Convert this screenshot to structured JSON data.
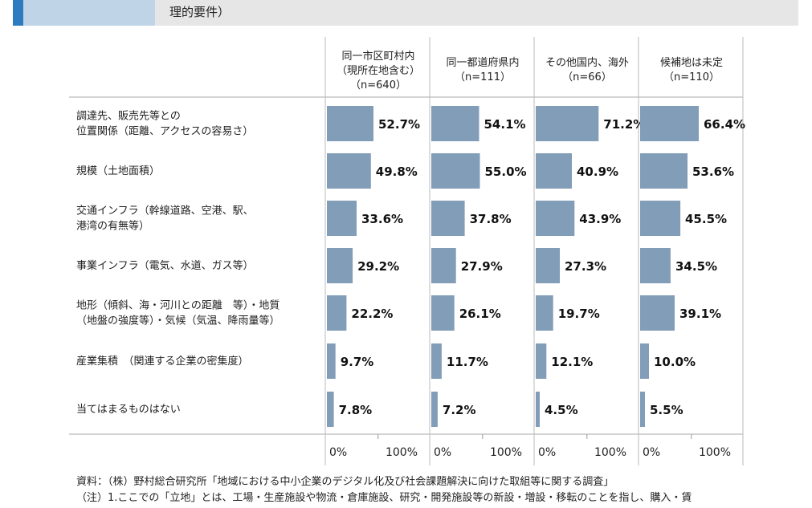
{
  "header": {
    "title": "理的要件）"
  },
  "chart_data": {
    "type": "bar",
    "orientation": "horizontal",
    "categories": [
      [
        "調達先、販売先等との",
        "位置関係（距離、アクセスの容易さ）"
      ],
      [
        "規模（土地面積）"
      ],
      [
        "交通インフラ（幹線道路、空港、駅、",
        "港湾の有無等）"
      ],
      [
        "事業インフラ（電気、水道、ガス等）"
      ],
      [
        "地形（傾斜、海・河川との距離　等）・地質",
        "（地盤の強度等）・気候（気温、降雨量等）"
      ],
      [
        "産業集積　（関連する企業の密集度）"
      ],
      [
        "当てはまるものはない"
      ]
    ],
    "series": [
      {
        "name": "同一市区町村内",
        "header": [
          "同一市区町村内",
          "（現所在地含む）",
          "（n=640）"
        ],
        "values": [
          52.7,
          49.8,
          33.6,
          29.2,
          22.2,
          9.7,
          7.8
        ],
        "labels": [
          "52.7%",
          "49.8%",
          "33.6%",
          "29.2%",
          "22.2%",
          "9.7%",
          "7.8%"
        ]
      },
      {
        "name": "同一都道府県内",
        "header": [
          "同一都道府県内",
          "（n=111）"
        ],
        "values": [
          54.1,
          55.0,
          37.8,
          27.9,
          26.1,
          11.7,
          7.2
        ],
        "labels": [
          "54.1%",
          "55.0%",
          "37.8%",
          "27.9%",
          "26.1%",
          "11.7%",
          "7.2%"
        ]
      },
      {
        "name": "その他国内、海外",
        "header": [
          "その他国内、海外",
          "（n=66）"
        ],
        "values": [
          71.2,
          40.9,
          43.9,
          27.3,
          19.7,
          12.1,
          4.5
        ],
        "labels": [
          "71.2%",
          "40.9%",
          "43.9%",
          "27.3%",
          "19.7%",
          "12.1%",
          "4.5%"
        ]
      },
      {
        "name": "候補地は未定",
        "header": [
          "候補地は未定",
          "（n=110）"
        ],
        "values": [
          66.4,
          53.6,
          45.5,
          34.5,
          39.1,
          10.0,
          5.5
        ],
        "labels": [
          "66.4%",
          "53.6%",
          "45.5%",
          "34.5%",
          "39.1%",
          "10.0%",
          "5.5%"
        ]
      }
    ],
    "axis": {
      "min": 0,
      "max": 100,
      "tick_labels": [
        "0%",
        "100%"
      ]
    },
    "bar_color": "#819db8",
    "grid": false,
    "legend": "none"
  },
  "notes": {
    "source": "資料：（株）野村総合研究所「地域における中小企業のデジタル化及び社会課題解決に向けた取組等に関する調査」",
    "note1": "（注）1.ここでの「立地」とは、工場・生産施設や物流・倉庫施設、研究・開発施設等の新設・増設・移転のことを指し、購入・賃"
  }
}
